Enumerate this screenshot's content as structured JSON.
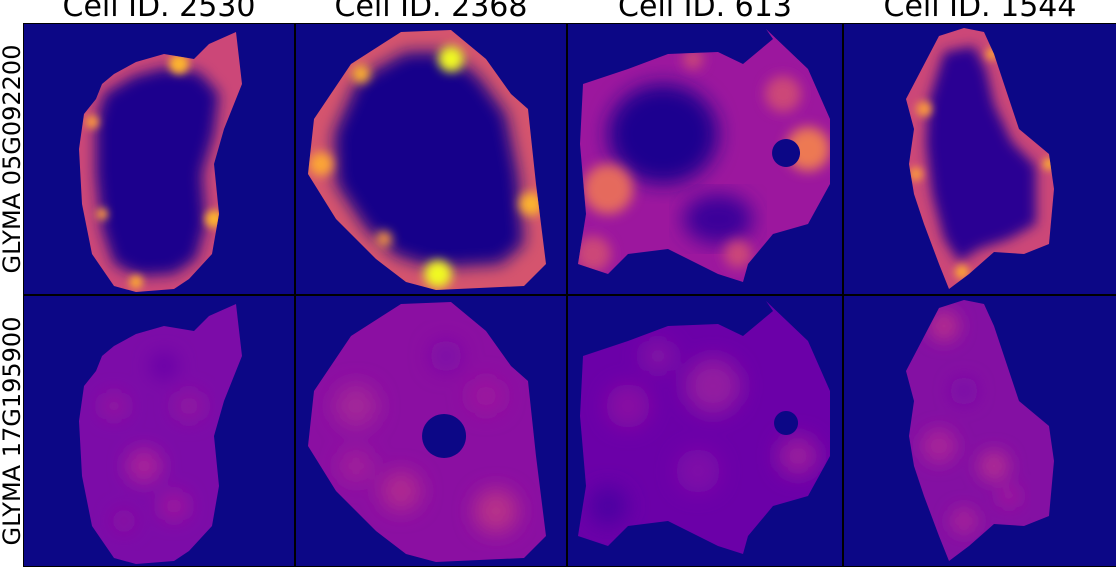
{
  "columns": [
    {
      "title": "Cell ID. 2530"
    },
    {
      "title": "Cell ID. 2368"
    },
    {
      "title": "Cell ID. 613"
    },
    {
      "title": "Cell ID. 1544"
    }
  ],
  "rows": [
    {
      "label": "GLYMA 05G092200"
    },
    {
      "label": "GLYMA 17G195900"
    }
  ],
  "colormap": {
    "name": "plasma",
    "background": "#0c0786",
    "low": "#2a0593",
    "mid_low": "#5c01a6",
    "mid": "#9c179e",
    "mid_high": "#cc4778",
    "high": "#ed7953",
    "peak": "#fdb42f",
    "max": "#f0f921"
  }
}
